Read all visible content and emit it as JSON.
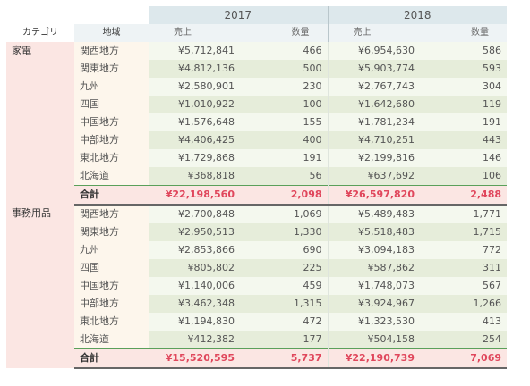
{
  "headers": {
    "category": "カテゴリ",
    "region": "地域",
    "years": [
      "2017",
      "2018"
    ],
    "sales": "売上",
    "quantity": "数量"
  },
  "groups": [
    {
      "category": "家電",
      "rows": [
        {
          "region": "関西地方",
          "s2017": "¥5,712,841",
          "q2017": "466",
          "s2018": "¥6,954,630",
          "q2018": "586"
        },
        {
          "region": "関東地方",
          "s2017": "¥4,812,136",
          "q2017": "500",
          "s2018": "¥5,903,774",
          "q2018": "593"
        },
        {
          "region": "九州",
          "s2017": "¥2,580,901",
          "q2017": "230",
          "s2018": "¥2,767,743",
          "q2018": "304"
        },
        {
          "region": "四国",
          "s2017": "¥1,010,922",
          "q2017": "100",
          "s2018": "¥1,642,680",
          "q2018": "119"
        },
        {
          "region": "中国地方",
          "s2017": "¥1,576,648",
          "q2017": "155",
          "s2018": "¥1,781,234",
          "q2018": "191"
        },
        {
          "region": "中部地方",
          "s2017": "¥4,406,425",
          "q2017": "400",
          "s2018": "¥4,710,251",
          "q2018": "443"
        },
        {
          "region": "東北地方",
          "s2017": "¥1,729,868",
          "q2017": "191",
          "s2018": "¥2,199,816",
          "q2018": "146"
        },
        {
          "region": "北海道",
          "s2017": "¥368,818",
          "q2017": "56",
          "s2018": "¥637,692",
          "q2018": "106"
        }
      ],
      "total": {
        "label": "合計",
        "s2017": "¥22,198,560",
        "q2017": "2,098",
        "s2018": "¥26,597,820",
        "q2018": "2,488"
      }
    },
    {
      "category": "事務用品",
      "rows": [
        {
          "region": "関西地方",
          "s2017": "¥2,700,848",
          "q2017": "1,069",
          "s2018": "¥5,489,483",
          "q2018": "1,771"
        },
        {
          "region": "関東地方",
          "s2017": "¥2,950,513",
          "q2017": "1,330",
          "s2018": "¥5,518,483",
          "q2018": "1,715"
        },
        {
          "region": "九州",
          "s2017": "¥2,853,866",
          "q2017": "690",
          "s2018": "¥3,094,183",
          "q2018": "772"
        },
        {
          "region": "四国",
          "s2017": "¥805,802",
          "q2017": "225",
          "s2018": "¥587,862",
          "q2018": "311"
        },
        {
          "region": "中国地方",
          "s2017": "¥1,140,006",
          "q2017": "459",
          "s2018": "¥1,748,073",
          "q2018": "567"
        },
        {
          "region": "中部地方",
          "s2017": "¥3,462,348",
          "q2017": "1,315",
          "s2018": "¥3,924,967",
          "q2018": "1,266"
        },
        {
          "region": "東北地方",
          "s2017": "¥1,194,830",
          "q2017": "472",
          "s2018": "¥1,323,530",
          "q2018": "413"
        },
        {
          "region": "北海道",
          "s2017": "¥412,382",
          "q2017": "177",
          "s2018": "¥504,158",
          "q2018": "254"
        }
      ],
      "total": {
        "label": "合計",
        "s2017": "¥15,520,595",
        "q2017": "5,737",
        "s2018": "¥22,190,739",
        "q2018": "7,069"
      }
    }
  ],
  "colors": {
    "total_text": "#e0475c",
    "category_bg": "#fbe6e3",
    "region_bg": "#fdf6ec",
    "header_bg": "#dde8ec",
    "total_rule": "#5aa05a"
  }
}
